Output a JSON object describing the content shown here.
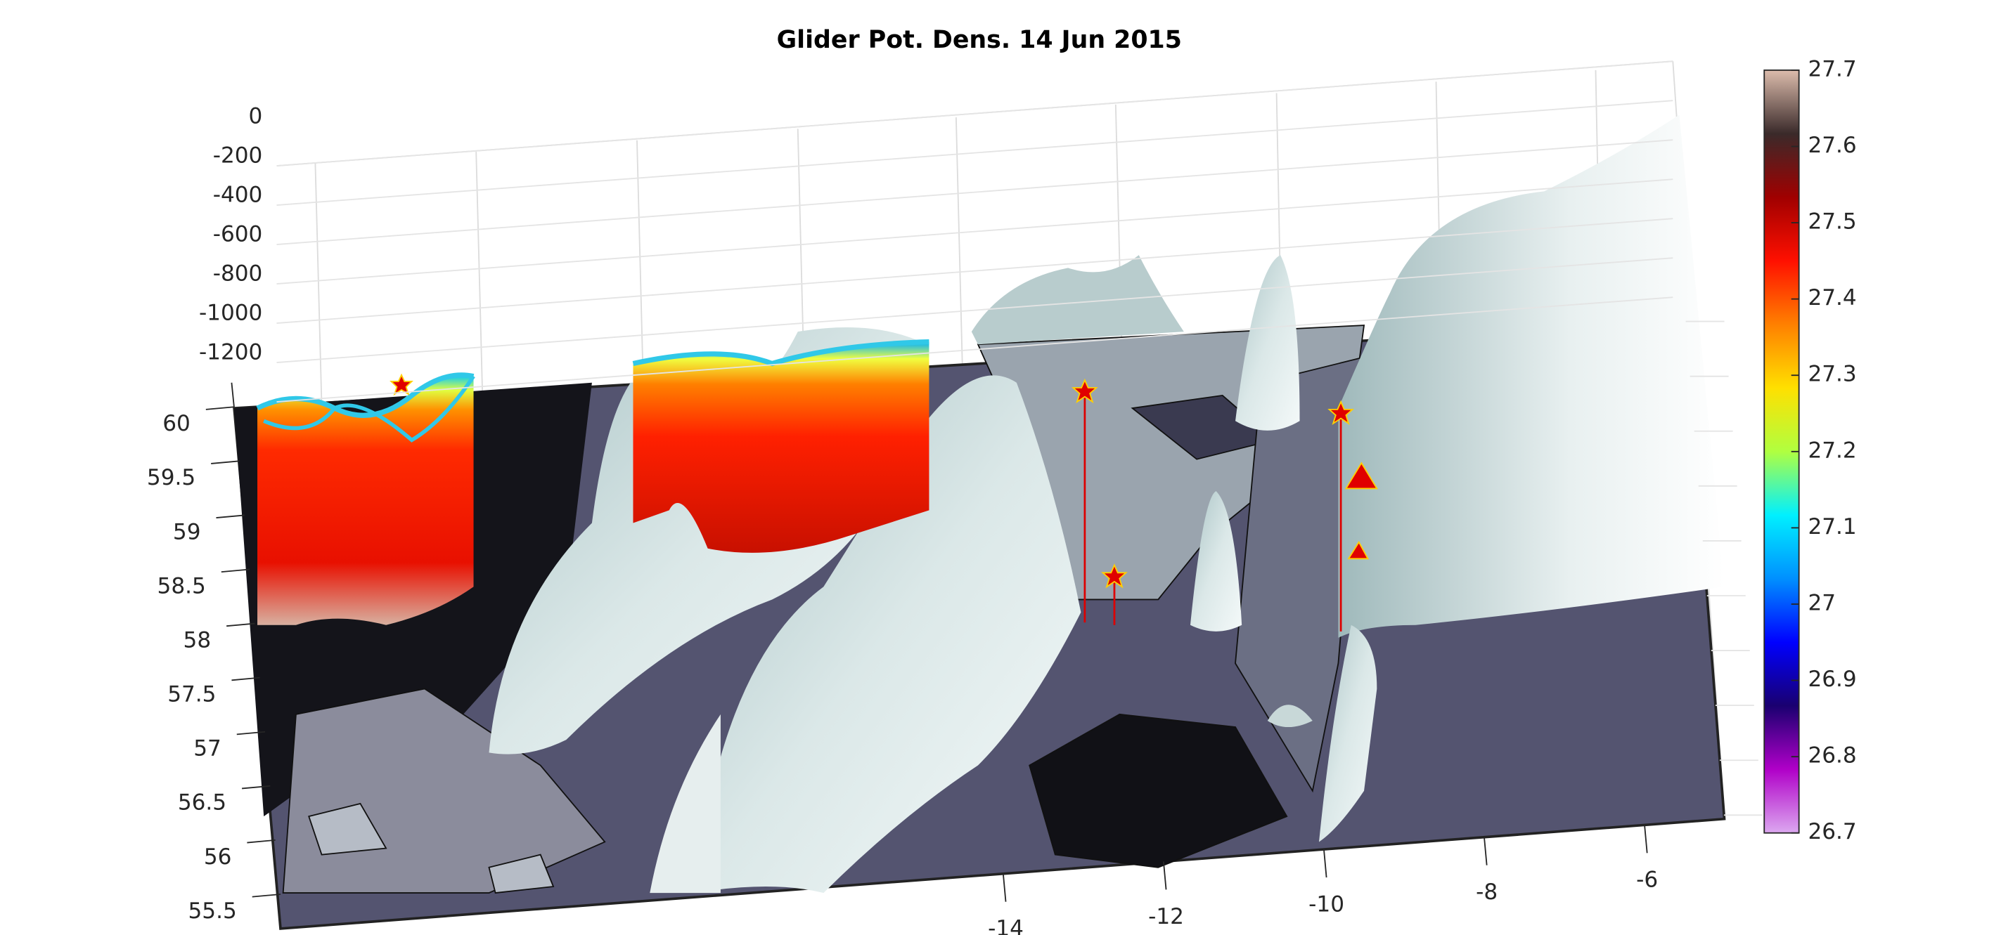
{
  "chart_data": {
    "type": "surface3d",
    "title": "Glider Pot. Dens. 14 Jun 2015",
    "zticks": [
      0,
      -200,
      -400,
      -600,
      -800,
      -1000,
      -1200
    ],
    "yticks": [
      60,
      59.5,
      59,
      58.5,
      58,
      57.5,
      57,
      56.5,
      56,
      55.5
    ],
    "xticks": [
      -14,
      -12,
      -10,
      -8,
      -6
    ],
    "clim": [
      26.7,
      27.7
    ],
    "cticks": [
      27.7,
      27.6,
      27.5,
      27.4,
      27.3,
      27.2,
      27.1,
      27,
      26.9,
      26.8,
      26.7
    ],
    "colormap": [
      "#dca8f0",
      "#b000c8",
      "#1a0070",
      "#0000ff",
      "#0090ff",
      "#00f0ff",
      "#b0ff40",
      "#ffe000",
      "#ff8000",
      "#ff1000",
      "#a00000",
      "#3a2a2a",
      "#dcbcac"
    ],
    "grid": true
  }
}
